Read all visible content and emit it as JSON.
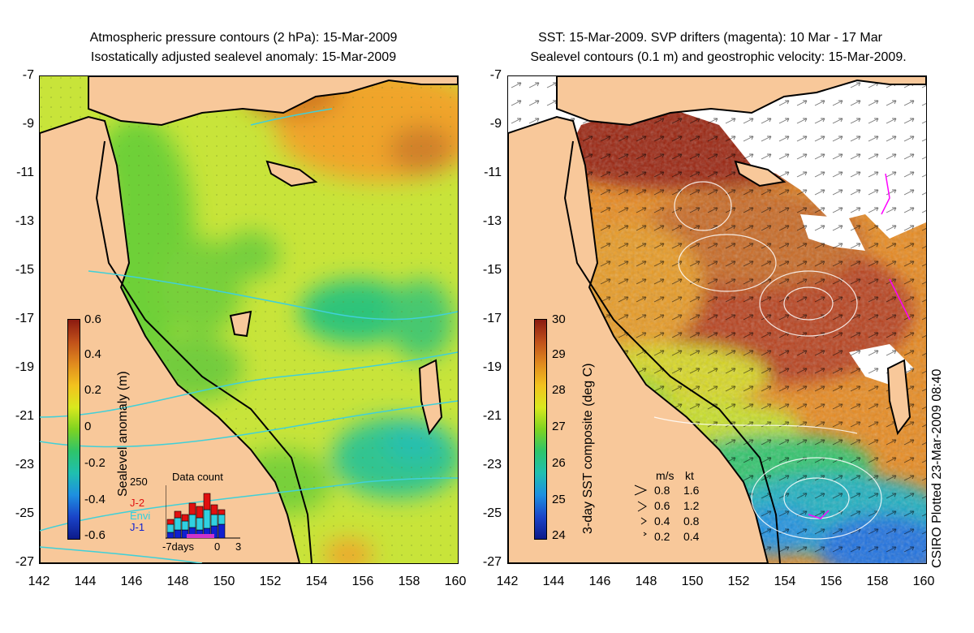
{
  "left_panel": {
    "title_line1": "Atmospheric pressure contours (2 hPa): 15-Mar-2009",
    "title_line2": "Isostatically adjusted sealevel anomaly: 15-Mar-2009",
    "colorbar": {
      "label": "Sealevel anomaly (m)",
      "ticks": [
        "0.6",
        "0.4",
        "0.2",
        "0",
        "-0.2",
        "-0.4",
        "-0.6"
      ],
      "colors": [
        "#8b1a10",
        "#c0501a",
        "#e08a1e",
        "#f2c21e",
        "#d9e81e",
        "#7ed321",
        "#2ec46a",
        "#1fbfb0",
        "#1e8fe0",
        "#1a44c8",
        "#0d1a8a"
      ]
    },
    "data_count": {
      "title": "Data count",
      "ymax_label": "250",
      "sat_j2": "J-2",
      "sat_envi": "Envi",
      "sat_j1": "J-1",
      "x_left": "-7days",
      "x_mid": "0",
      "x_right": "3"
    }
  },
  "right_panel": {
    "title_line1": "SST: 15-Mar-2009. SVP drifters (magenta): 10 Mar - 17 Mar",
    "title_line2": "Sealevel contours (0.1 m) and geostrophic velocity: 15-Mar-2009.",
    "colorbar": {
      "label": "3-day SST composite (deg C)",
      "ticks": [
        "30",
        "29",
        "28",
        "27",
        "26",
        "25",
        "24"
      ],
      "colors": [
        "#8b1a10",
        "#c0501a",
        "#e08a1e",
        "#f2c21e",
        "#d9e81e",
        "#7ed321",
        "#2ec46a",
        "#1fbfb0",
        "#1e8fe0",
        "#1a44c8",
        "#0d1a8a"
      ]
    },
    "velocity_legend": {
      "unit_ms": "m/s",
      "unit_kt": "kt",
      "rows": [
        {
          "ms": "0.8",
          "kt": "1.6"
        },
        {
          "ms": "0.6",
          "kt": "1.2"
        },
        {
          "ms": "0.4",
          "kt": "0.8"
        },
        {
          "ms": "0.2",
          "kt": "0.4"
        }
      ]
    }
  },
  "axes": {
    "x_ticks": [
      "142",
      "144",
      "146",
      "148",
      "150",
      "152",
      "154",
      "156",
      "158",
      "160"
    ],
    "y_ticks": [
      "-7",
      "-9",
      "-11",
      "-13",
      "-15",
      "-17",
      "-19",
      "-21",
      "-23",
      "-25",
      "-27"
    ]
  },
  "credit": "CSIRO Plotted 23-Mar-2009 08:40",
  "colors": {
    "land": "#f8c89a",
    "coast": "#000000",
    "pressure_contour": "#40d0d8",
    "drifter": "#ff00ff"
  }
}
